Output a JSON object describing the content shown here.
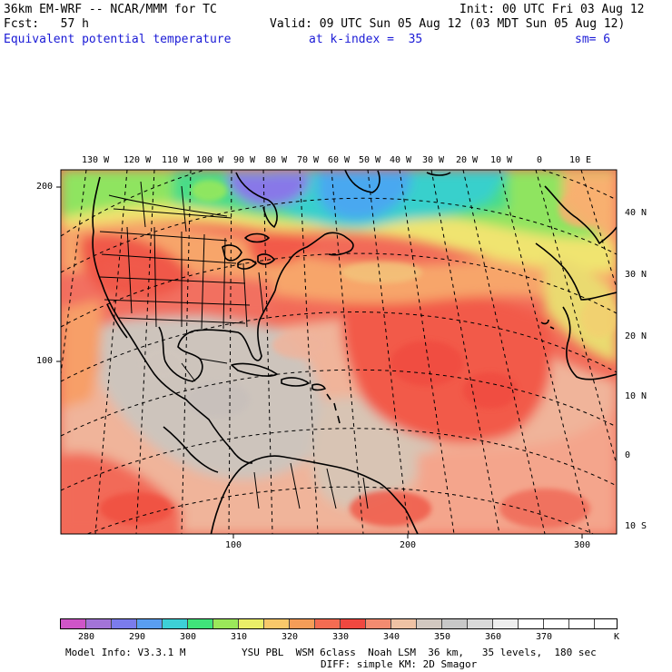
{
  "header": {
    "model_title": "36km EM-WRF -- NCAR/MMM for TC",
    "init_line": "Init: 00 UTC Fri 03 Aug 12",
    "fcst_line": "Fcst:   57 h",
    "valid_line": "Valid: 09 UTC Sun 05 Aug 12 (03 MDT Sun 05 Aug 12)",
    "field_name": "Equivalent potential temperature",
    "level_line": "at k-index =  35",
    "smoothing": "sm= 6"
  },
  "map": {
    "lon_labels": [
      "130 W",
      "120 W",
      "110 W",
      "100 W",
      "90 W",
      "80 W",
      "70 W",
      "60 W",
      "50 W",
      "40 W",
      "30 W",
      "20 W",
      "10 W",
      "0",
      "10 E"
    ],
    "lat_labels": [
      "40 N",
      "30 N",
      "20 N",
      "10 N",
      "0",
      "10 S"
    ],
    "grid_y_labels": [
      "200",
      "100"
    ],
    "grid_x_labels": [
      "100",
      "200",
      "300"
    ]
  },
  "colorbar": {
    "unit": "K",
    "tick_labels": [
      "280",
      "290",
      "300",
      "310",
      "320",
      "330",
      "340",
      "350",
      "360",
      "370"
    ],
    "colors": [
      "#cf55c8",
      "#a374d8",
      "#7b7cec",
      "#5a9ef0",
      "#3dd0d6",
      "#40e47a",
      "#9be85a",
      "#eaee68",
      "#f8c86a",
      "#f59d58",
      "#f46c52",
      "#f04840",
      "#f38b70",
      "#efc2a4",
      "#d2c8c0",
      "#c8c8c8",
      "#d9d9d9",
      "#eeeeee",
      "#ffffff",
      "#ffffff",
      "#ffffff",
      "#ffffff"
    ]
  },
  "footer": {
    "model_info": "Model Info: V3.3.1 M",
    "physics_1": "YSU PBL  WSM 6class  Noah LSM  36 km,   35 levels,  180 sec",
    "physics_2": "DIFF: simple KM: 2D Smagor"
  }
}
